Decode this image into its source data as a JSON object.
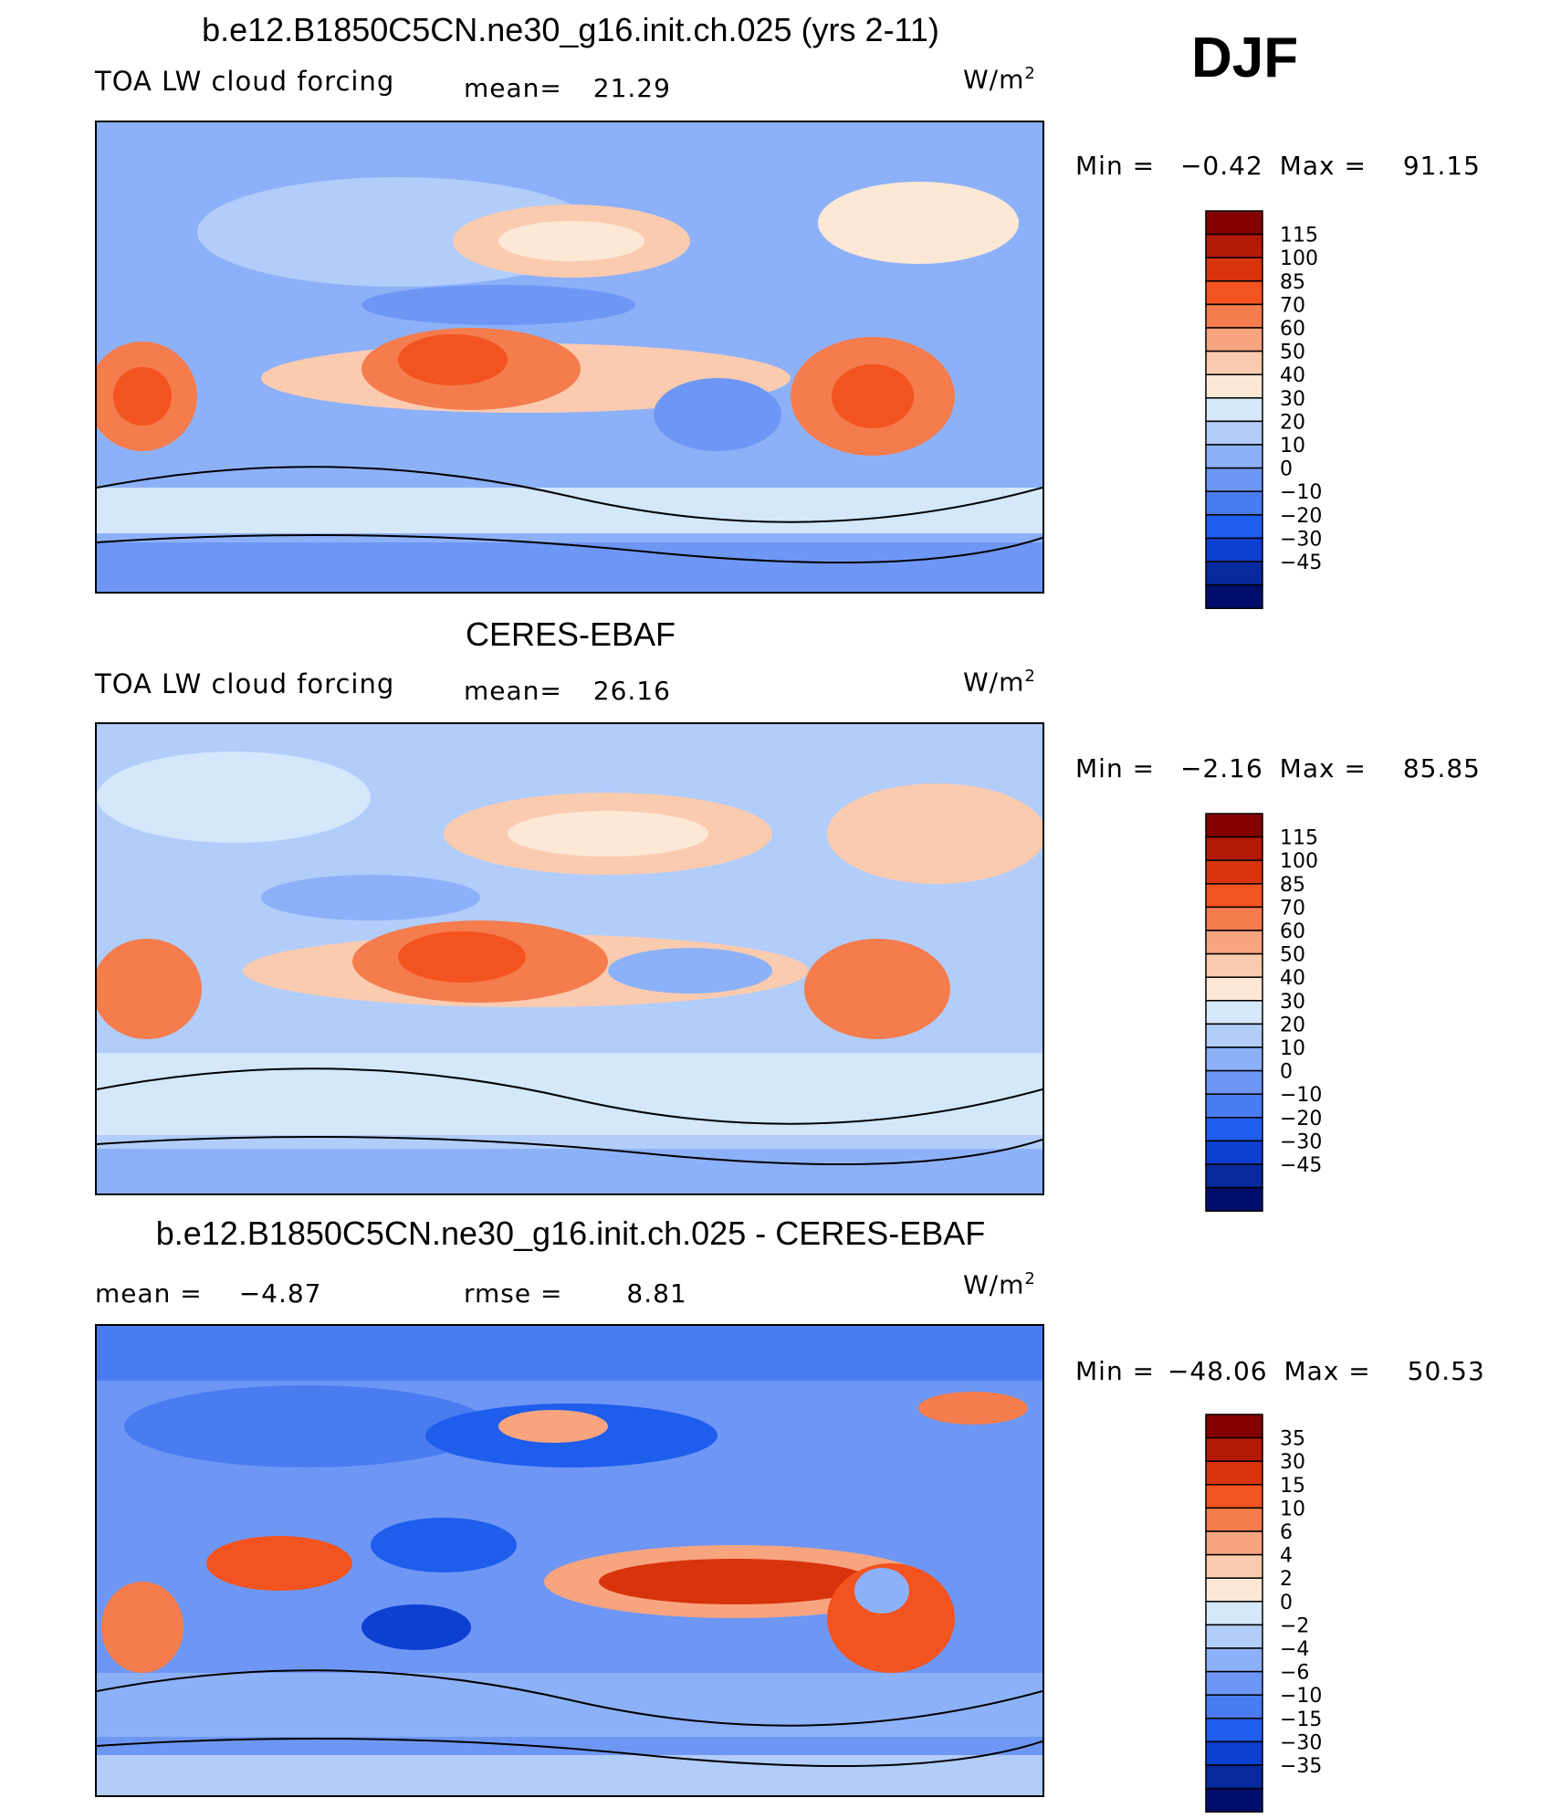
{
  "season": "DJF",
  "panels": [
    {
      "id": "model",
      "title": "b.e12.B1850C5CN.ne30_g16.init.ch.025 (yrs 2-11)",
      "left_label": "TOA LW cloud forcing",
      "center_label": "mean=",
      "center_value": "21.29",
      "units": "W/m",
      "units_exp": "2",
      "min_label": "Min =",
      "min_value": "−0.42",
      "max_label": "Max =",
      "max_value": "91.15"
    },
    {
      "id": "obs",
      "title": "CERES-EBAF",
      "left_label": "TOA LW cloud forcing",
      "center_label": "mean=",
      "center_value": "26.16",
      "units": "W/m",
      "units_exp": "2",
      "min_label": "Min =",
      "min_value": "−2.16",
      "max_label": "Max =",
      "max_value": "85.85"
    },
    {
      "id": "diff",
      "title": "b.e12.B1850C5CN.ne30_g16.init.ch.025 - CERES-EBAF",
      "left_label": "mean =",
      "left_value": "−4.87",
      "center_label": "rmse =",
      "center_value": "8.81",
      "units": "W/m",
      "units_exp": "2",
      "min_label": "Min =",
      "min_value": "−48.06",
      "max_label": "Max =",
      "max_value": "50.53"
    }
  ],
  "chart_data": [
    {
      "type": "heatmap",
      "title": "b.e12.B1850C5CN.ne30_g16.init.ch.025 (yrs 2-11)",
      "variable": "TOA LW cloud forcing",
      "units": "W/m2",
      "mean": 21.29,
      "min": -0.42,
      "max": 91.15,
      "colorbar_labels": [
        "115",
        "100",
        "85",
        "70",
        "60",
        "50",
        "40",
        "30",
        "20",
        "10",
        "0",
        "−10",
        "−20",
        "−30",
        "−45"
      ],
      "colorbar_colors": [
        "#840000",
        "#b21a05",
        "#d8330b",
        "#f3531f",
        "#f47c4d",
        "#f7a47f",
        "#fbcbb0",
        "#fde8d6",
        "#d4e7fb",
        "#b2cdfa",
        "#8db1f8",
        "#6e97f5",
        "#4a7cf1",
        "#1f5ded",
        "#0d3fd1",
        "#062a9e",
        "#000d6b"
      ],
      "colorbar_edge_low": -45,
      "colorbar_edge_high": 115
    },
    {
      "type": "heatmap",
      "title": "CERES-EBAF",
      "variable": "TOA LW cloud forcing",
      "units": "W/m2",
      "mean": 26.16,
      "min": -2.16,
      "max": 85.85,
      "colorbar_labels": [
        "115",
        "100",
        "85",
        "70",
        "60",
        "50",
        "40",
        "30",
        "20",
        "10",
        "0",
        "−10",
        "−20",
        "−30",
        "−45"
      ],
      "colorbar_colors": [
        "#840000",
        "#b21a05",
        "#d8330b",
        "#f3531f",
        "#f47c4d",
        "#f7a47f",
        "#fbcbb0",
        "#fde8d6",
        "#d4e7fb",
        "#b2cdfa",
        "#8db1f8",
        "#6e97f5",
        "#4a7cf1",
        "#1f5ded",
        "#0d3fd1",
        "#062a9e",
        "#000d6b"
      ]
    },
    {
      "type": "heatmap",
      "title": "b.e12.B1850C5CN.ne30_g16.init.ch.025 - CERES-EBAF",
      "units": "W/m2",
      "mean": -4.87,
      "rmse": 8.81,
      "min": -48.06,
      "max": 50.53,
      "colorbar_labels": [
        "35",
        "30",
        "15",
        "10",
        "6",
        "4",
        "2",
        "0",
        "−2",
        "−4",
        "−6",
        "−10",
        "−15",
        "−30",
        "−35"
      ],
      "colorbar_colors": [
        "#840000",
        "#b21a05",
        "#d8330b",
        "#f3531f",
        "#f47c4d",
        "#f7a47f",
        "#fbcbb0",
        "#fde8d6",
        "#d4e7fb",
        "#b2cdfa",
        "#8db1f8",
        "#6e97f5",
        "#4a7cf1",
        "#1f5ded",
        "#0d3fd1",
        "#062a9e",
        "#000d6b"
      ]
    }
  ]
}
